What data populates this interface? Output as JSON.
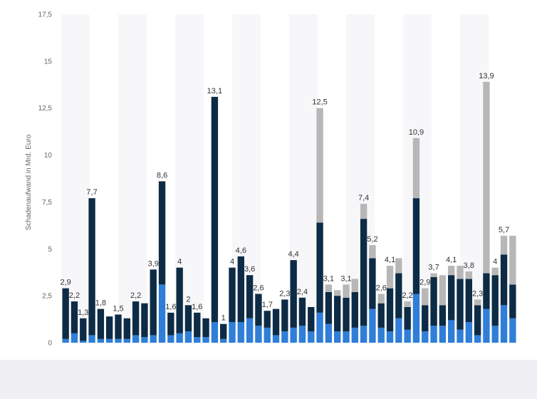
{
  "chart_data": {
    "type": "bar",
    "stacked": true,
    "title": "",
    "xlabel": "",
    "ylabel": "Schadenaufwand in Mrd. Euro",
    "ylim": [
      0,
      17.5
    ],
    "yticks": [
      0,
      2.5,
      5,
      7.5,
      10,
      12.5,
      15,
      17.5
    ],
    "ytick_labels": [
      "0",
      "2,5",
      "5",
      "7,5",
      "10",
      "12,5",
      "15",
      "17,5"
    ],
    "grid": "alternating vertical bands",
    "legend": "none",
    "series": [
      {
        "color": "#2f7ed8",
        "values": [
          0.2,
          0.5,
          0.1,
          0.4,
          0.2,
          0.2,
          0.2,
          0.2,
          0.4,
          0.3,
          0.4,
          3.1,
          0.4,
          0.5,
          0.6,
          0.3,
          0.3,
          1.1,
          0.2,
          1.1,
          1.1,
          1.3,
          0.9,
          0.8,
          0.4,
          0.6,
          0.8,
          0.9,
          0.6,
          1.6,
          1.0,
          0.6,
          0.6,
          0.8,
          0.9,
          1.8,
          0.8,
          0.6,
          1.3,
          0.7,
          2.6,
          0.6,
          0.9,
          0.9,
          1.2,
          0.7,
          1.1,
          0.4,
          1.8,
          0.9,
          2.0,
          1.3
        ]
      },
      {
        "color": "#0d2b45",
        "values": [
          2.7,
          1.7,
          1.2,
          7.3,
          1.6,
          1.2,
          1.3,
          1.1,
          1.8,
          1.8,
          3.5,
          5.5,
          1.2,
          3.5,
          1.4,
          1.3,
          1.0,
          12.0,
          0.8,
          2.9,
          3.5,
          2.3,
          1.7,
          0.9,
          1.4,
          1.7,
          3.6,
          1.5,
          1.3,
          4.8,
          1.7,
          1.9,
          1.8,
          1.9,
          5.7,
          2.7,
          1.3,
          2.3,
          2.4,
          1.2,
          5.1,
          1.4,
          2.6,
          1.1,
          2.4,
          2.7,
          2.3,
          1.6,
          1.9,
          2.7,
          2.7,
          1.8
        ]
      },
      {
        "color": "#b7b7b7",
        "values": [
          0,
          0,
          0,
          0,
          0,
          0,
          0,
          0,
          0,
          0,
          0,
          0,
          0,
          0,
          0,
          0,
          0,
          0,
          0,
          0,
          0,
          0,
          0,
          0,
          0,
          0,
          0,
          0,
          0,
          6.1,
          0.4,
          0.3,
          0.7,
          0.7,
          0.8,
          0.7,
          0.5,
          1.2,
          0.8,
          0.3,
          3.2,
          0.9,
          0.2,
          1.6,
          0.5,
          0.7,
          0.4,
          0.3,
          10.2,
          0.4,
          1.0,
          2.6
        ]
      }
    ],
    "data_labels": [
      "2,9",
      "2,2",
      "1,3",
      "7,7",
      "1,8",
      "",
      "1,5",
      "",
      "2,2",
      "",
      "3,9",
      "8,6",
      "1,6",
      "4",
      "2",
      "1,6",
      "",
      "13,1",
      "1",
      "4",
      "4,6",
      "3,6",
      "2,6",
      "1,7",
      "",
      "2,3",
      "4,4",
      "2,4",
      "",
      "12,5",
      "3,1",
      "",
      "3,1",
      "",
      "7,4",
      "5,2",
      "2,6",
      "4,1",
      "",
      "2,2",
      "10,9",
      "2,9",
      "3,7",
      "",
      "4,1",
      "",
      "3,8",
      "2,3",
      "13,9",
      "4",
      "5,7",
      ""
    ]
  }
}
